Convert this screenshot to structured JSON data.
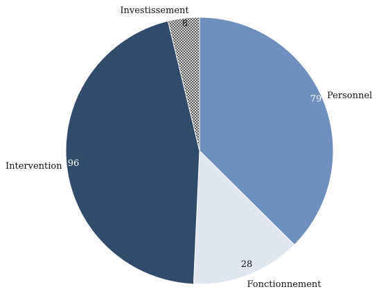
{
  "chart_data": {
    "type": "pie",
    "title": "",
    "start": "12 o'clock",
    "direction": "clockwise",
    "slices": [
      {
        "label": "Personnel",
        "value": 79,
        "color": "#6f8fbe",
        "value_color": "#ffffff"
      },
      {
        "label": "Fonctionnement",
        "value": 28,
        "color": "#dfe6f0",
        "value_color": "#111111"
      },
      {
        "label": "Intervention",
        "value": 96,
        "color": "#314b6b",
        "value_color": "#ffffff"
      },
      {
        "label": "Investissement",
        "value": 8,
        "color": "#ffffff",
        "pattern": "crosshatch",
        "value_color": "#111111"
      }
    ]
  }
}
